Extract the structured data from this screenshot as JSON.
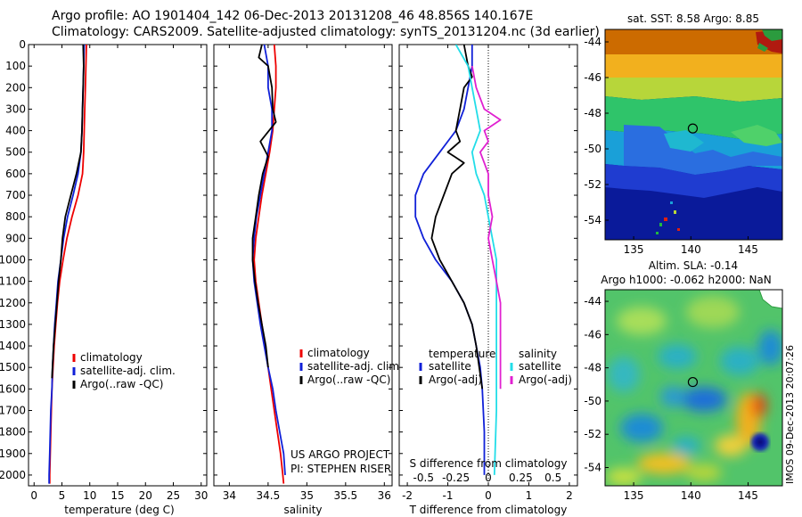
{
  "header": {
    "line1": "Argo profile: AO 1901404_142 06-Dec-2013 20131208_46 48.856S 140.167E",
    "line2": "Climatology: CARS2009. Satellite-adjusted climatology: synTS_20131204.nc (3d earlier)"
  },
  "side_label": "IMOS 09-Dec-2013 20:07:26",
  "credits": {
    "line1": "US ARGO PROJECT",
    "line2": "PI: STEPHEN RISER"
  },
  "colors": {
    "climatology": "#ee0000",
    "satellite": "#1020d8",
    "argo": "#000000",
    "sal_satellite": "#22dde8",
    "sal_argo": "#e020d0"
  },
  "chart_data": [
    {
      "id": "temperature",
      "type": "line",
      "xlabel": "temperature (deg C)",
      "ylabel": "",
      "xlim": [
        -1,
        31
      ],
      "ylim": [
        2050,
        0
      ],
      "xticks": [
        "0",
        "5",
        "10",
        "15",
        "20",
        "25",
        "30"
      ],
      "yticks": [
        "0",
        "100",
        "200",
        "300",
        "400",
        "500",
        "600",
        "700",
        "800",
        "900",
        "1000",
        "1100",
        "1200",
        "1300",
        "1400",
        "1500",
        "1600",
        "1700",
        "1800",
        "1900",
        "2000"
      ],
      "legend": [
        "climatology",
        "satellite-adj. clim.",
        "Argo(..raw -QC)"
      ],
      "series": [
        {
          "name": "climatology",
          "color_key": "climatology",
          "points": [
            [
              9.4,
              0
            ],
            [
              9.3,
              100
            ],
            [
              9.2,
              200
            ],
            [
              9.1,
              300
            ],
            [
              9.0,
              400
            ],
            [
              8.9,
              500
            ],
            [
              8.7,
              600
            ],
            [
              7.9,
              700
            ],
            [
              6.8,
              800
            ],
            [
              5.9,
              900
            ],
            [
              5.2,
              1000
            ],
            [
              4.6,
              1100
            ],
            [
              4.2,
              1200
            ],
            [
              3.9,
              1300
            ],
            [
              3.6,
              1400
            ],
            [
              3.4,
              1500
            ],
            [
              3.2,
              1600
            ],
            [
              3.1,
              1700
            ],
            [
              3.0,
              1800
            ],
            [
              2.9,
              1900
            ],
            [
              2.8,
              2000
            ],
            [
              2.8,
              2040
            ]
          ]
        },
        {
          "name": "satellite-adj. clim.",
          "color_key": "satellite",
          "points": [
            [
              9.0,
              0
            ],
            [
              8.9,
              100
            ],
            [
              8.8,
              200
            ],
            [
              8.7,
              300
            ],
            [
              8.6,
              400
            ],
            [
              8.4,
              500
            ],
            [
              7.9,
              600
            ],
            [
              7.0,
              700
            ],
            [
              6.0,
              800
            ],
            [
              5.3,
              900
            ],
            [
              4.8,
              1000
            ],
            [
              4.3,
              1100
            ],
            [
              4.0,
              1200
            ],
            [
              3.7,
              1300
            ],
            [
              3.5,
              1400
            ],
            [
              3.3,
              1500
            ],
            [
              3.2,
              1600
            ],
            [
              3.0,
              1700
            ],
            [
              2.9,
              1800
            ],
            [
              2.8,
              1900
            ],
            [
              2.7,
              2000
            ],
            [
              2.7,
              2040
            ]
          ]
        },
        {
          "name": "Argo(..raw -QC)",
          "color_key": "argo",
          "points": [
            [
              8.8,
              0
            ],
            [
              8.9,
              100
            ],
            [
              8.8,
              200
            ],
            [
              8.7,
              300
            ],
            [
              8.6,
              400
            ],
            [
              8.4,
              500
            ],
            [
              7.6,
              600
            ],
            [
              6.6,
              700
            ],
            [
              5.6,
              800
            ],
            [
              5.1,
              900
            ],
            [
              4.8,
              1000
            ],
            [
              4.4,
              1100
            ],
            [
              4.1,
              1200
            ],
            [
              3.8,
              1300
            ],
            [
              3.5,
              1400
            ],
            [
              3.3,
              1500
            ],
            [
              3.2,
              1550
            ]
          ]
        }
      ]
    },
    {
      "id": "salinity",
      "type": "line",
      "xlabel": "salinity",
      "ylabel": "",
      "xlim": [
        33.8,
        36.1
      ],
      "ylim": [
        2050,
        0
      ],
      "xticks": [
        "34",
        "34.5",
        "35",
        "35.5",
        "36"
      ],
      "legend": [
        "climatology",
        "satellite-adj. clim.",
        "Argo(..raw -QC)"
      ],
      "series": [
        {
          "name": "climatology",
          "color_key": "climatology",
          "points": [
            [
              34.58,
              0
            ],
            [
              34.6,
              100
            ],
            [
              34.6,
              200
            ],
            [
              34.58,
              300
            ],
            [
              34.56,
              400
            ],
            [
              34.52,
              500
            ],
            [
              34.47,
              600
            ],
            [
              34.42,
              700
            ],
            [
              34.38,
              800
            ],
            [
              34.34,
              900
            ],
            [
              34.32,
              1000
            ],
            [
              34.34,
              1100
            ],
            [
              34.38,
              1200
            ],
            [
              34.42,
              1300
            ],
            [
              34.46,
              1400
            ],
            [
              34.5,
              1500
            ],
            [
              34.54,
              1600
            ],
            [
              34.58,
              1700
            ],
            [
              34.62,
              1800
            ],
            [
              34.66,
              1900
            ],
            [
              34.69,
              2000
            ],
            [
              34.7,
              2040
            ]
          ]
        },
        {
          "name": "satellite-adj. clim.",
          "color_key": "satellite",
          "points": [
            [
              34.45,
              0
            ],
            [
              34.5,
              100
            ],
            [
              34.5,
              200
            ],
            [
              34.55,
              300
            ],
            [
              34.55,
              400
            ],
            [
              34.5,
              500
            ],
            [
              34.45,
              600
            ],
            [
              34.4,
              700
            ],
            [
              34.35,
              800
            ],
            [
              34.32,
              900
            ],
            [
              34.3,
              1000
            ],
            [
              34.32,
              1100
            ],
            [
              34.36,
              1200
            ],
            [
              34.4,
              1300
            ],
            [
              34.45,
              1400
            ],
            [
              34.5,
              1500
            ],
            [
              34.56,
              1600
            ],
            [
              34.6,
              1700
            ],
            [
              34.65,
              1800
            ],
            [
              34.7,
              1900
            ],
            [
              34.72,
              2000
            ]
          ]
        },
        {
          "name": "Argo(..raw -QC)",
          "color_key": "argo",
          "points": [
            [
              34.42,
              0
            ],
            [
              34.38,
              60
            ],
            [
              34.5,
              100
            ],
            [
              34.55,
              200
            ],
            [
              34.56,
              300
            ],
            [
              34.6,
              360
            ],
            [
              34.4,
              450
            ],
            [
              34.5,
              520
            ],
            [
              34.43,
              600
            ],
            [
              34.38,
              700
            ],
            [
              34.34,
              800
            ],
            [
              34.3,
              900
            ],
            [
              34.3,
              1000
            ],
            [
              34.33,
              1100
            ],
            [
              34.37,
              1200
            ],
            [
              34.42,
              1300
            ],
            [
              34.47,
              1400
            ],
            [
              34.5,
              1500
            ]
          ]
        }
      ]
    },
    {
      "id": "difference",
      "type": "line",
      "xlabel": "T difference from climatology",
      "xlabel_top": "S difference from climatology",
      "xlim": [
        -2.2,
        2.2
      ],
      "ylim": [
        2050,
        0
      ],
      "xticks_t": [
        "-2",
        "-1",
        "0",
        "1",
        "2"
      ],
      "xticks_s": [
        "-0.5",
        "-0.25",
        "0",
        "0.25",
        "0.5"
      ],
      "legend_t_title": "temperature",
      "legend_s_title": "salinity",
      "legend_t": [
        "satellite",
        "Argo(-adj)"
      ],
      "legend_s": [
        "satellite",
        "Argo(-adj)"
      ],
      "series": [
        {
          "name": "T satellite",
          "color_key": "satellite",
          "points": [
            [
              -0.4,
              0
            ],
            [
              -0.4,
              100
            ],
            [
              -0.5,
              200
            ],
            [
              -0.6,
              300
            ],
            [
              -0.8,
              400
            ],
            [
              -1.2,
              500
            ],
            [
              -1.6,
              600
            ],
            [
              -1.8,
              700
            ],
            [
              -1.8,
              800
            ],
            [
              -1.6,
              900
            ],
            [
              -1.3,
              1000
            ],
            [
              -0.9,
              1100
            ],
            [
              -0.6,
              1200
            ],
            [
              -0.4,
              1300
            ],
            [
              -0.3,
              1400
            ],
            [
              -0.2,
              1500
            ],
            [
              -0.15,
              1600
            ],
            [
              -0.1,
              1800
            ],
            [
              -0.1,
              2000
            ]
          ]
        },
        {
          "name": "T Argo(-adj)",
          "color_key": "argo",
          "points": [
            [
              -0.6,
              0
            ],
            [
              -0.5,
              100
            ],
            [
              -0.4,
              150
            ],
            [
              -0.6,
              200
            ],
            [
              -0.7,
              300
            ],
            [
              -0.8,
              400
            ],
            [
              -0.7,
              450
            ],
            [
              -1.0,
              500
            ],
            [
              -0.6,
              550
            ],
            [
              -0.9,
              600
            ],
            [
              -1.1,
              700
            ],
            [
              -1.3,
              800
            ],
            [
              -1.4,
              900
            ],
            [
              -1.2,
              1000
            ],
            [
              -0.9,
              1100
            ],
            [
              -0.6,
              1200
            ],
            [
              -0.4,
              1300
            ],
            [
              -0.3,
              1400
            ],
            [
              -0.15,
              1600
            ]
          ]
        },
        {
          "name": "S satellite",
          "color_key": "sal_satellite",
          "points": [
            [
              -0.8,
              0
            ],
            [
              -0.5,
              100
            ],
            [
              -0.4,
              200
            ],
            [
              -0.3,
              300
            ],
            [
              -0.2,
              400
            ],
            [
              -0.4,
              500
            ],
            [
              -0.3,
              600
            ],
            [
              -0.1,
              700
            ],
            [
              0.0,
              800
            ],
            [
              0.1,
              900
            ],
            [
              0.2,
              1000
            ],
            [
              0.2,
              1100
            ],
            [
              0.2,
              1200
            ],
            [
              0.2,
              1300
            ],
            [
              0.2,
              1400
            ],
            [
              0.2,
              1500
            ],
            [
              0.2,
              1700
            ],
            [
              0.15,
              2000
            ]
          ]
        },
        {
          "name": "S Argo(-adj)",
          "color_key": "sal_argo",
          "points": [
            [
              -0.4,
              100
            ],
            [
              -0.3,
              200
            ],
            [
              -0.1,
              300
            ],
            [
              0.3,
              350
            ],
            [
              -0.1,
              400
            ],
            [
              0.0,
              450
            ],
            [
              -0.2,
              500
            ],
            [
              -0.1,
              550
            ],
            [
              0.0,
              600
            ],
            [
              0.0,
              700
            ],
            [
              0.1,
              800
            ],
            [
              0.0,
              900
            ],
            [
              0.1,
              1000
            ],
            [
              0.2,
              1100
            ],
            [
              0.3,
              1200
            ],
            [
              0.3,
              1300
            ],
            [
              0.3,
              1400
            ],
            [
              0.3,
              1500
            ],
            [
              0.3,
              1600
            ]
          ]
        }
      ]
    },
    {
      "id": "sst_map",
      "type": "heatmap",
      "title": "sat. SST: 8.58 Argo: 8.85",
      "xticks": [
        "135",
        "140",
        "145"
      ],
      "yticks": [
        "-44",
        "-46",
        "-48",
        "-50",
        "-52",
        "-54"
      ],
      "xlim": [
        132.5,
        148
      ],
      "ylim": [
        -55.1,
        -43.3
      ],
      "marker": {
        "lon": 140.167,
        "lat": -48.856
      }
    },
    {
      "id": "sla_map",
      "type": "heatmap",
      "title": "Altim. SLA: -0.14",
      "subtitle": "Argo h1000: -0.062 h2000: NaN",
      "xticks": [
        "135",
        "140",
        "145"
      ],
      "yticks": [
        "-44",
        "-46",
        "-48",
        "-50",
        "-52",
        "-54"
      ],
      "xlim": [
        132.5,
        148
      ],
      "ylim": [
        -55.1,
        -43.3
      ],
      "marker": {
        "lon": 140.167,
        "lat": -48.856
      }
    }
  ]
}
